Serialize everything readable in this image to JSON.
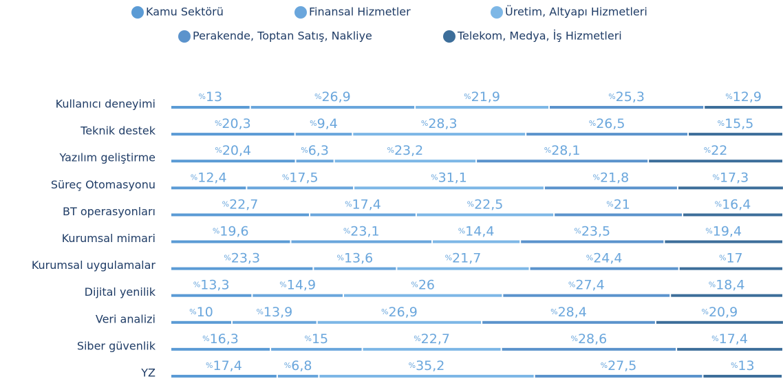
{
  "chart_data": {
    "type": "bar",
    "orientation": "horizontal",
    "stacked": true,
    "xlim": [
      0,
      100
    ],
    "categories": [
      "Kullanıcı deneyimi",
      "Teknik destek",
      "Yazılım geliştirme",
      "Süreç Otomasyonu",
      "BT operasyonları",
      "Kurumsal mimari",
      "Kurumsal uygulamalar",
      "Dijital yenilik",
      "Veri analizi",
      "Siber güvenlik",
      "YZ"
    ],
    "series": [
      {
        "name": "Kamu Sektörü",
        "color": "#5b9bd5",
        "values": [
          13,
          20.3,
          20.4,
          12.4,
          22.7,
          19.6,
          23.3,
          13.3,
          10,
          16.3,
          17.4
        ],
        "value_labels": [
          "%13",
          "%20,3",
          "%20,4",
          "%12,4",
          "%22,7",
          "%19,6",
          "%23,3",
          "%13,3",
          "%10",
          "%16,3",
          "%17,4"
        ]
      },
      {
        "name": "Finansal Hizmetler",
        "color": "#6aa6dc",
        "values": [
          26.9,
          9.4,
          6.3,
          17.5,
          17.4,
          23.1,
          13.6,
          14.9,
          13.9,
          15,
          6.8
        ],
        "value_labels": [
          "%26,9",
          "%9,4",
          "%6,3",
          "%17,5",
          "%17,4",
          "%23,1",
          "%13,6",
          "%14,9",
          "%13,9",
          "%15",
          "%6,8"
        ]
      },
      {
        "name": "Üretim, Altyapı Hizmetleri",
        "color": "#7db7e6",
        "values": [
          21.9,
          28.3,
          23.2,
          31.1,
          22.5,
          14.4,
          21.7,
          26,
          26.9,
          22.7,
          35.2
        ],
        "value_labels": [
          "%21,9",
          "%28,3",
          "%23,2",
          "%31,1",
          "%22,5",
          "%14,4",
          "%21,7",
          "%26",
          "%26,9",
          "%22,7",
          "%35,2"
        ]
      },
      {
        "name": "Perakende, Toptan Satış, Nakliye",
        "color": "#5b93cc",
        "values": [
          25.3,
          26.5,
          28.1,
          21.8,
          21,
          23.5,
          24.4,
          27.4,
          28.4,
          28.6,
          27.5
        ],
        "value_labels": [
          "%25,3",
          "%26,5",
          "%28,1",
          "%21,8",
          "%21",
          "%23,5",
          "%24,4",
          "%27,4",
          "%28,4",
          "%28,6",
          "%27,5"
        ]
      },
      {
        "name": "Telekom, Medya, İş Hizmetleri",
        "color": "#3d6e9a",
        "values": [
          12.9,
          15.5,
          22,
          17.3,
          16.4,
          19.4,
          17,
          18.4,
          20.9,
          17.4,
          13
        ],
        "value_labels": [
          "%12,9",
          "%15,5",
          "%22",
          "%17,3",
          "%16,4",
          "%19,4",
          "%17",
          "%18,4",
          "%20,9",
          "%17,4",
          "%13"
        ]
      }
    ]
  }
}
